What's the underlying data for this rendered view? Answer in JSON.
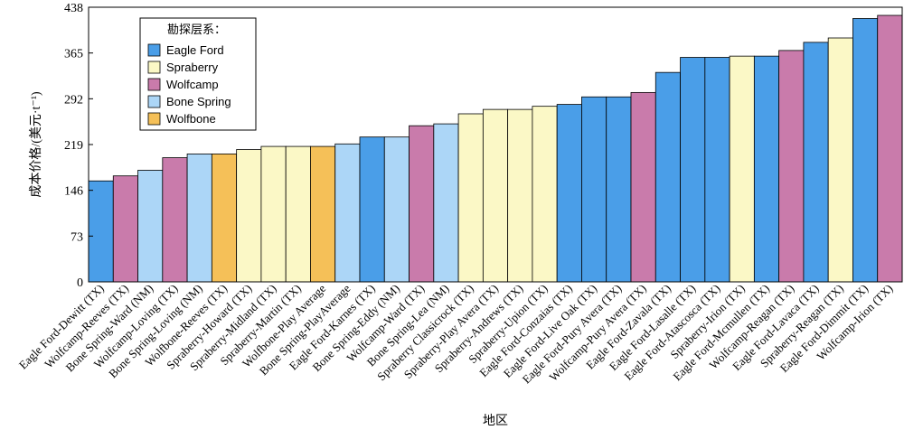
{
  "chart_data": {
    "type": "bar",
    "xlabel": "地区",
    "ylabel": "成本价格/(美元·t⁻¹)",
    "ylim": [
      0,
      438
    ],
    "yticks": [
      0,
      73,
      146,
      219,
      292,
      365,
      438
    ],
    "grid": false,
    "legend": {
      "title": "勘探层系：",
      "placement": "top-left",
      "entries": [
        {
          "name": "Eagle Ford",
          "color": "#4a9ee8"
        },
        {
          "name": "Spraberry",
          "color": "#fbf8c6"
        },
        {
          "name": "Wolfcamp",
          "color": "#c97bab"
        },
        {
          "name": "Bone Spring",
          "color": "#acd6f7"
        },
        {
          "name": "Wolfbone",
          "color": "#f5c058"
        }
      ]
    },
    "categories": [
      "Eagle Ford-Dewitt (TX)",
      "Wolfcamp-Reeves (TX)",
      "Bone Spring-Ward (NM)",
      "Wolfcamp-Loving (TX)",
      "Bone Spring-Loving (NM)",
      "Wolfbone-Reeves (TX)",
      "Spraberry-Howard (TX)",
      "Spraberry-Midland (TX)",
      "Spraberry-Martin (TX)",
      "Wolfbone-Play Average",
      "Bone Spring-PlayAverage",
      "Eagle Ford-Karnes (TX)",
      "Bone Spring-Eddy (NM)",
      "Wolfcamp-Ward (TX)",
      "Bone Spring-Lea (NM)",
      "Spraberry Classicrock (TX)",
      "Spraberry-Play Avera (TX)",
      "Spraberry-Andrews (TX)",
      "Spraberry-Upion (TX)",
      "Eagle Ford-Conzaias (TX)",
      "Eagle Ford-Live Oak (TX)",
      "Eagle Ford-Pury Avera (TX)",
      "Wolfcamp-Pury Avera (TX)",
      "Eagle Ford-Zavala (TX)",
      "Eagle Ford-Lasalle (TX)",
      "Eagle Ford-Atascosca (TX)",
      "Spraberry-Irion (TX)",
      "Eagle Ford-Mcmullen (TX)",
      "Wolfcamp-Reagan (TX)",
      "Eagle Ford-Lavaca (TX)",
      "Spraberry-Reagan (TX)",
      "Eagle Ford-Dimmit (TX)",
      "Wolfcamp-Irion (TX)"
    ],
    "values": [
      161,
      169,
      178,
      198,
      204,
      204,
      211,
      216,
      216,
      216,
      220,
      231,
      231,
      249,
      252,
      268,
      275,
      275,
      280,
      283,
      295,
      295,
      302,
      334,
      358,
      358,
      360,
      360,
      369,
      382,
      389,
      420,
      425
    ],
    "groups": [
      "Eagle Ford",
      "Wolfcamp",
      "Bone Spring",
      "Wolfcamp",
      "Bone Spring",
      "Wolfbone",
      "Spraberry",
      "Spraberry",
      "Spraberry",
      "Wolfbone",
      "Bone Spring",
      "Eagle Ford",
      "Bone Spring",
      "Wolfcamp",
      "Bone Spring",
      "Spraberry",
      "Spraberry",
      "Spraberry",
      "Spraberry",
      "Eagle Ford",
      "Eagle Ford",
      "Eagle Ford",
      "Wolfcamp",
      "Eagle Ford",
      "Eagle Ford",
      "Eagle Ford",
      "Spraberry",
      "Eagle Ford",
      "Wolfcamp",
      "Eagle Ford",
      "Spraberry",
      "Eagle Ford",
      "Wolfcamp"
    ]
  }
}
